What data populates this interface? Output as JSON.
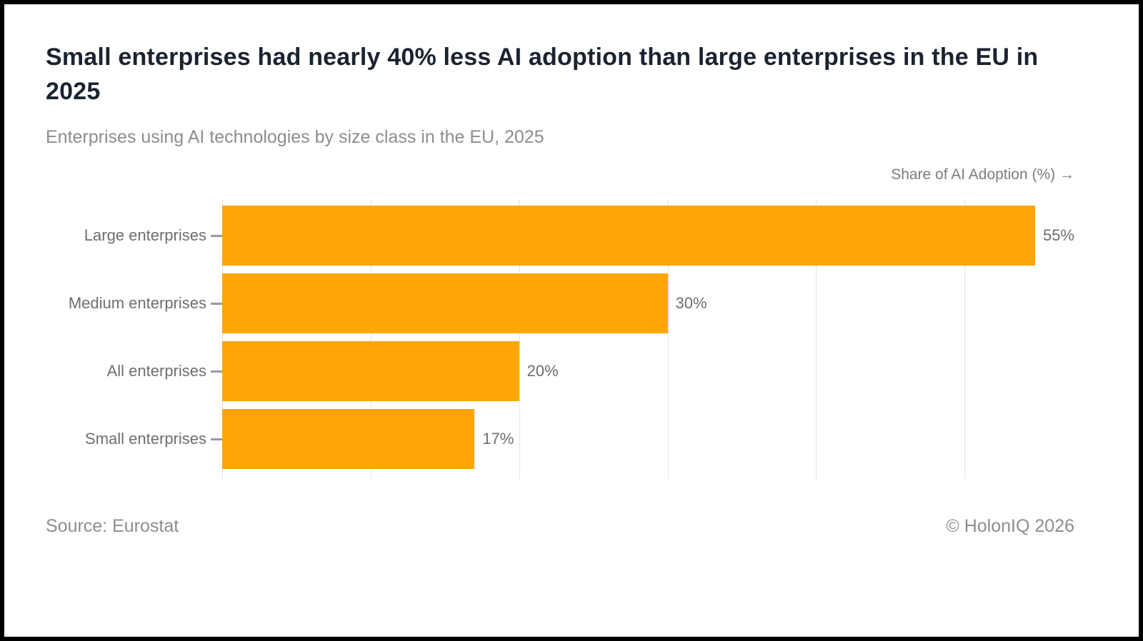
{
  "header": {
    "title": "Small enterprises had nearly 40% less AI adoption than large enterprises in the EU in 2025",
    "subtitle": "Enterprises using AI technologies by size class in the EU, 2025"
  },
  "chart_data": {
    "type": "bar",
    "orientation": "horizontal",
    "categories": [
      "Large enterprises",
      "Medium enterprises",
      "All enterprises",
      "Small enterprises"
    ],
    "values": [
      55,
      30,
      20,
      17
    ],
    "value_labels": [
      "55%",
      "30%",
      "20%",
      "17%"
    ],
    "xlabel": "Share of AI Adoption (%) →",
    "xlim": [
      0,
      57.4
    ],
    "gridline_step": 10,
    "grid": "vertical-lines",
    "bar_color": "#ffa505",
    "gridline_color": "#e3e3e3",
    "label_color": "#6e6e6e"
  },
  "footer": {
    "source": "Source: Eurostat",
    "attribution": "© HolonIQ 2026"
  }
}
